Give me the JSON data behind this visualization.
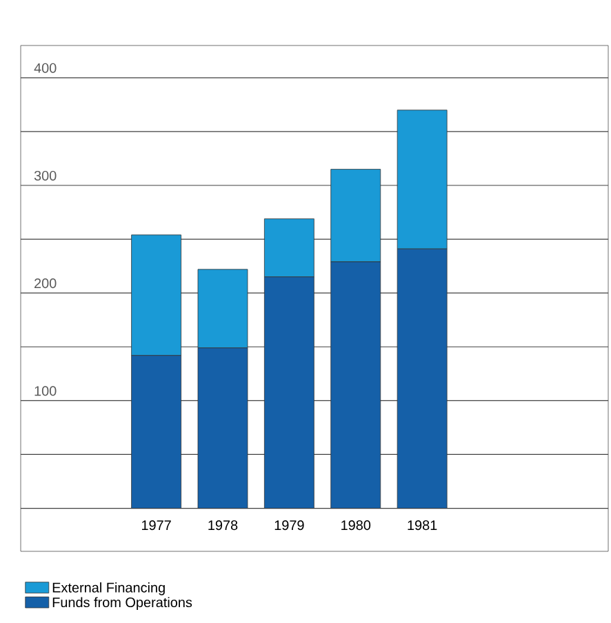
{
  "chart_data": {
    "type": "bar",
    "stacked": true,
    "categories": [
      "1977",
      "1978",
      "1979",
      "1980",
      "1981"
    ],
    "series": [
      {
        "name": "Funds from Operations",
        "color": "#1560a8",
        "values": [
          142,
          149,
          215,
          229,
          241
        ]
      },
      {
        "name": "External Financing",
        "color": "#1a9ad6",
        "values": [
          112,
          73,
          54,
          86,
          129
        ]
      }
    ],
    "ylim": [
      -40,
      430
    ],
    "yticks": [
      {
        "value": 0,
        "label": null
      },
      {
        "value": 50,
        "label": null
      },
      100,
      {
        "value": 150,
        "label": null
      },
      200,
      {
        "value": 250,
        "label": null
      },
      300,
      {
        "value": 350,
        "label": null
      },
      400
    ],
    "grid": "y",
    "legend": "bottom left"
  }
}
